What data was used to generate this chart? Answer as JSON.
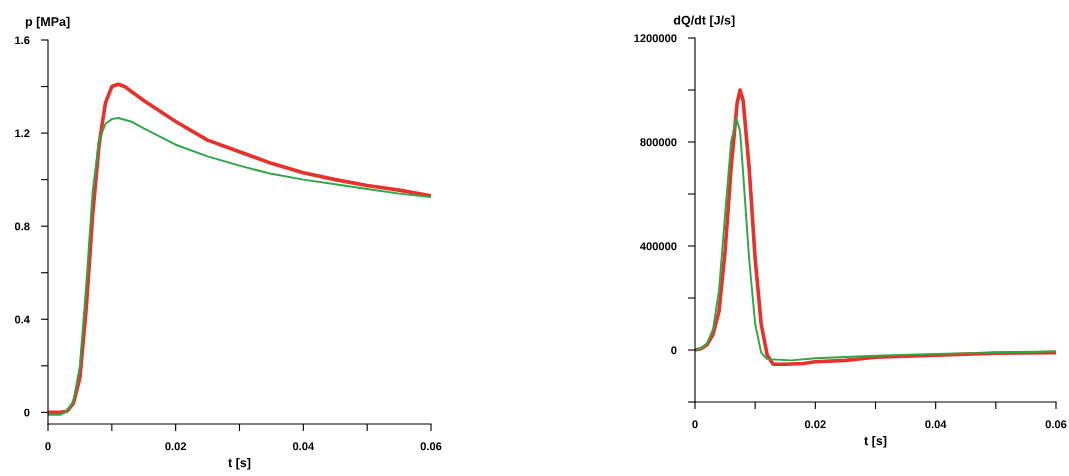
{
  "chart_data": [
    {
      "type": "line",
      "xlabel": "t [s]",
      "ylabel": "p [MPa]",
      "xlim": [
        0,
        0.06
      ],
      "ylim": [
        -0.05,
        1.6
      ],
      "xticks": [
        0,
        {
          "value": 0.01,
          "label": null
        },
        0.02,
        {
          "value": 0.03,
          "label": null
        },
        0.04,
        {
          "value": 0.05,
          "label": null
        },
        0.06
      ],
      "yticks": [
        0,
        {
          "value": 0.2,
          "label": null
        },
        0.4,
        {
          "value": 0.6,
          "label": null
        },
        0.8,
        {
          "value": 1.0,
          "label": null
        },
        1.2,
        {
          "value": 1.4,
          "label": null
        },
        1.6
      ],
      "grid": false,
      "legend": false,
      "marker": "none",
      "line_style": "solid",
      "series": [
        {
          "color": "#e8312a",
          "x": [
            0,
            0.002,
            0.003,
            0.004,
            0.005,
            0.006,
            0.007,
            0.008,
            0.009,
            0.01,
            0.011,
            0.012,
            0.015,
            0.02,
            0.025,
            0.03,
            0.035,
            0.04,
            0.045,
            0.05,
            0.055,
            0.06
          ],
          "values": [
            0,
            0,
            0.005,
            0.04,
            0.15,
            0.45,
            0.85,
            1.15,
            1.33,
            1.4,
            1.41,
            1.4,
            1.34,
            1.25,
            1.17,
            1.12,
            1.07,
            1.03,
            1.0,
            0.975,
            0.955,
            0.93
          ]
        },
        {
          "color": "#2ca845",
          "x": [
            0,
            0.002,
            0.003,
            0.004,
            0.005,
            0.006,
            0.007,
            0.008,
            0.009,
            0.01,
            0.011,
            0.013,
            0.015,
            0.02,
            0.025,
            0.03,
            0.035,
            0.04,
            0.045,
            0.05,
            0.055,
            0.06
          ],
          "values": [
            -0.01,
            -0.01,
            0.005,
            0.05,
            0.2,
            0.55,
            0.95,
            1.17,
            1.24,
            1.26,
            1.265,
            1.25,
            1.22,
            1.15,
            1.1,
            1.06,
            1.025,
            1.0,
            0.98,
            0.96,
            0.94,
            0.925
          ]
        }
      ]
    },
    {
      "type": "line",
      "xlabel": "t [s]",
      "ylabel": "dQ/dt [J/s]",
      "xlim": [
        0,
        0.06
      ],
      "ylim": [
        -200000,
        1200000
      ],
      "xticks": [
        0,
        {
          "value": 0.01,
          "label": null
        },
        0.02,
        {
          "value": 0.03,
          "label": null
        },
        0.04,
        {
          "value": 0.05,
          "label": null
        },
        0.06
      ],
      "yticks": [
        {
          "value": -200000,
          "label": null
        },
        0,
        {
          "value": 200000,
          "label": null
        },
        400000,
        {
          "value": 600000,
          "label": null
        },
        800000,
        {
          "value": 1000000,
          "label": null
        },
        1200000
      ],
      "grid": false,
      "legend": false,
      "marker": "none",
      "line_style": "solid",
      "series": [
        {
          "color": "#e8312a",
          "x": [
            0,
            0.001,
            0.002,
            0.003,
            0.004,
            0.005,
            0.006,
            0.007,
            0.0075,
            0.008,
            0.009,
            0.01,
            0.011,
            0.012,
            0.013,
            0.015,
            0.018,
            0.02,
            0.025,
            0.03,
            0.04,
            0.05,
            0.06
          ],
          "values": [
            0,
            5000,
            20000,
            60000,
            150000,
            380000,
            700000,
            950000,
            1000000,
            960000,
            700000,
            350000,
            100000,
            -20000,
            -55000,
            -55000,
            -52000,
            -45000,
            -40000,
            -28000,
            -20000,
            -12000,
            -10000
          ]
        },
        {
          "color": "#2ca845",
          "x": [
            0,
            0.001,
            0.002,
            0.003,
            0.004,
            0.005,
            0.006,
            0.0069,
            0.0075,
            0.008,
            0.009,
            0.01,
            0.011,
            0.012,
            0.016,
            0.02,
            0.03,
            0.04,
            0.05,
            0.06
          ],
          "values": [
            0,
            5000,
            25000,
            80000,
            230000,
            520000,
            800000,
            890000,
            840000,
            680000,
            350000,
            100000,
            -10000,
            -35000,
            -40000,
            -32000,
            -22000,
            -15000,
            -10000,
            -5000
          ]
        }
      ]
    }
  ]
}
